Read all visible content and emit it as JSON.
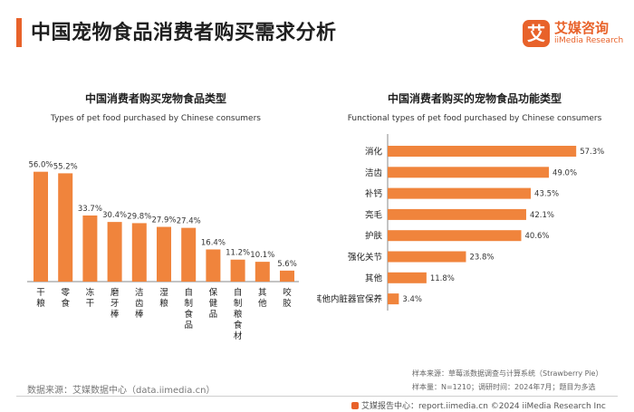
{
  "header": {
    "title": "中国宠物食品消费者购买需求分析",
    "logo_glyph": "艾",
    "brand_cn": "艾媒咨询",
    "brand_en": "iiMedia Research"
  },
  "chart_data": [
    {
      "type": "bar",
      "title": "中国消费者购买宠物食品类型",
      "subtitle": "Types of pet food purchased by Chinese consumers",
      "categories": [
        "干粮",
        "零食",
        "冻干",
        "磨牙棒",
        "洁齿棒",
        "湿粮",
        "自制食品",
        "保健品",
        "自制粮食材",
        "其他",
        "咬胶"
      ],
      "values": [
        56.0,
        55.2,
        33.7,
        30.4,
        29.8,
        27.9,
        27.4,
        16.4,
        11.2,
        10.1,
        5.6
      ],
      "value_labels": [
        "56.0%",
        "55.2%",
        "33.7%",
        "30.4%",
        "29.8%",
        "27.9%",
        "27.4%",
        "16.4%",
        "11.2%",
        "10.1%",
        "5.6%"
      ],
      "unit": "%",
      "ylim": [
        0,
        60
      ],
      "color": "#f0843c"
    },
    {
      "type": "bar",
      "orientation": "horizontal",
      "title": "中国消费者购买的宠物食品功能类型",
      "subtitle": "Functional types of pet food purchased by Chinese consumers",
      "categories": [
        "消化",
        "洁齿",
        "补钙",
        "亮毛",
        "护肤",
        "强化关节",
        "其他",
        "其他内脏器官保养"
      ],
      "values": [
        57.3,
        49.0,
        43.5,
        42.1,
        40.6,
        23.8,
        11.8,
        3.4
      ],
      "value_labels": [
        "57.3%",
        "49.0%",
        "43.5%",
        "42.1%",
        "40.6%",
        "23.8%",
        "11.8%",
        "3.4%"
      ],
      "unit": "%",
      "xlim": [
        0,
        60
      ],
      "color": "#f0843c"
    }
  ],
  "footer": {
    "source_left": "数据来源：艾媒数据中心（data.iimedia.cn）",
    "sample_source": "样本来源：草莓派数据调查与计算系统（Strawberry Pie）",
    "sample_info": "样本量：N=1210；调研时间：2024年7月；题目为多选",
    "bottom": "艾媒报告中心：report.iimedia.cn   ©2024  iiMedia Research  Inc"
  }
}
